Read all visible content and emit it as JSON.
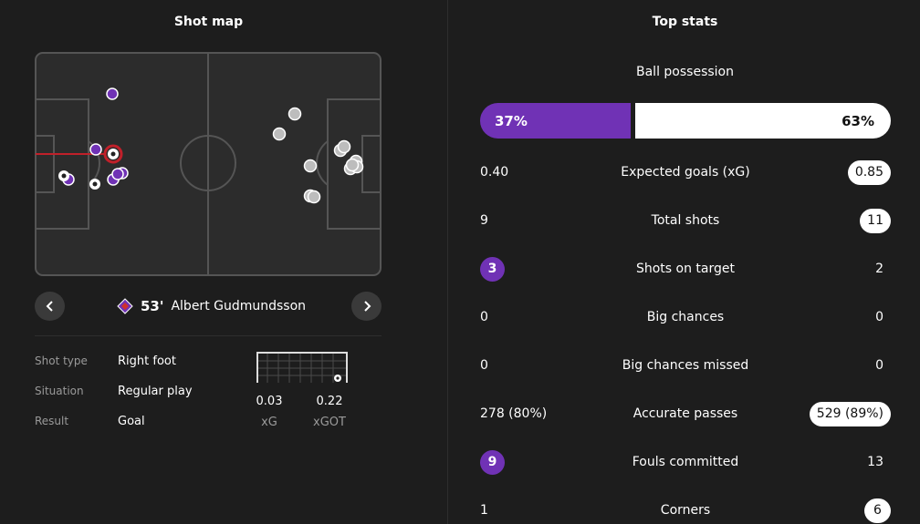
{
  "shot_map": {
    "title": "Shot map",
    "selected_shot": {
      "minute": "53'",
      "player": "Albert Gudmundsson"
    },
    "details": [
      {
        "key": "Shot type",
        "value": "Right foot"
      },
      {
        "key": "Situation",
        "value": "Regular play"
      },
      {
        "key": "Result",
        "value": "Goal"
      }
    ],
    "xg": {
      "value": "0.03",
      "label": "xG"
    },
    "xgot": {
      "value": "0.22",
      "label": "xGOT"
    },
    "colors": {
      "home": "#7032b5",
      "away": "#dcdcdc",
      "selected_ring": "#c0202a"
    },
    "icons": {
      "prev": "chevron-left-icon",
      "next": "chevron-right-icon",
      "team": "fiorentina-logo-icon"
    }
  },
  "top_stats": {
    "title": "Top stats",
    "possession": {
      "label": "Ball possession",
      "home": "37%",
      "away": "63%",
      "home_fraction": 0.37
    },
    "rows": [
      {
        "name": "Expected goals (xG)",
        "home": "0.40",
        "away": "0.85",
        "highlight": "away"
      },
      {
        "name": "Total shots",
        "home": "9",
        "away": "11",
        "highlight": "away"
      },
      {
        "name": "Shots on target",
        "home": "3",
        "away": "2",
        "highlight": "home"
      },
      {
        "name": "Big chances",
        "home": "0",
        "away": "0",
        "highlight": "none"
      },
      {
        "name": "Big chances missed",
        "home": "0",
        "away": "0",
        "highlight": "none"
      },
      {
        "name": "Accurate passes",
        "home": "278 (80%)",
        "away": "529 (89%)",
        "highlight": "away"
      },
      {
        "name": "Fouls committed",
        "home": "9",
        "away": "13",
        "highlight": "home"
      },
      {
        "name": "Corners",
        "home": "1",
        "away": "6",
        "highlight": "away"
      }
    ]
  }
}
